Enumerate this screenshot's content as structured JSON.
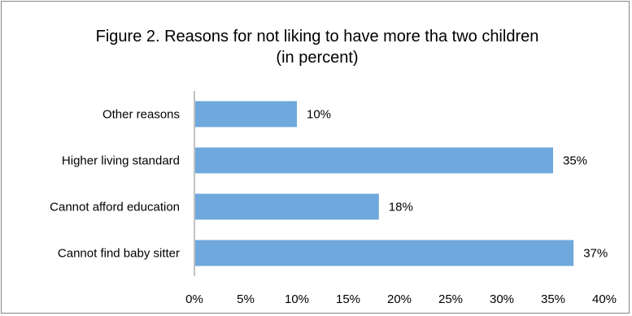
{
  "chart_data": {
    "type": "bar",
    "orientation": "horizontal",
    "title": "Figure 2. Reasons for not liking to have more tha two children",
    "subtitle": "(in percent)",
    "categories": [
      "Other reasons",
      "Higher living standard",
      "Cannot afford education",
      "Cannot find baby sitter"
    ],
    "values": [
      10,
      35,
      18,
      37
    ],
    "value_labels": [
      "10%",
      "35%",
      "18%",
      "37%"
    ],
    "xlim": [
      0,
      40
    ],
    "x_ticks": [
      0,
      5,
      10,
      15,
      20,
      25,
      30,
      35,
      40
    ],
    "x_tick_labels": [
      "0%",
      "5%",
      "10%",
      "15%",
      "20%",
      "25%",
      "30%",
      "35%",
      "40%"
    ],
    "xlabel": "",
    "ylabel": "",
    "grid": false,
    "legend": "none",
    "bar_color": "#6fa8dc"
  }
}
